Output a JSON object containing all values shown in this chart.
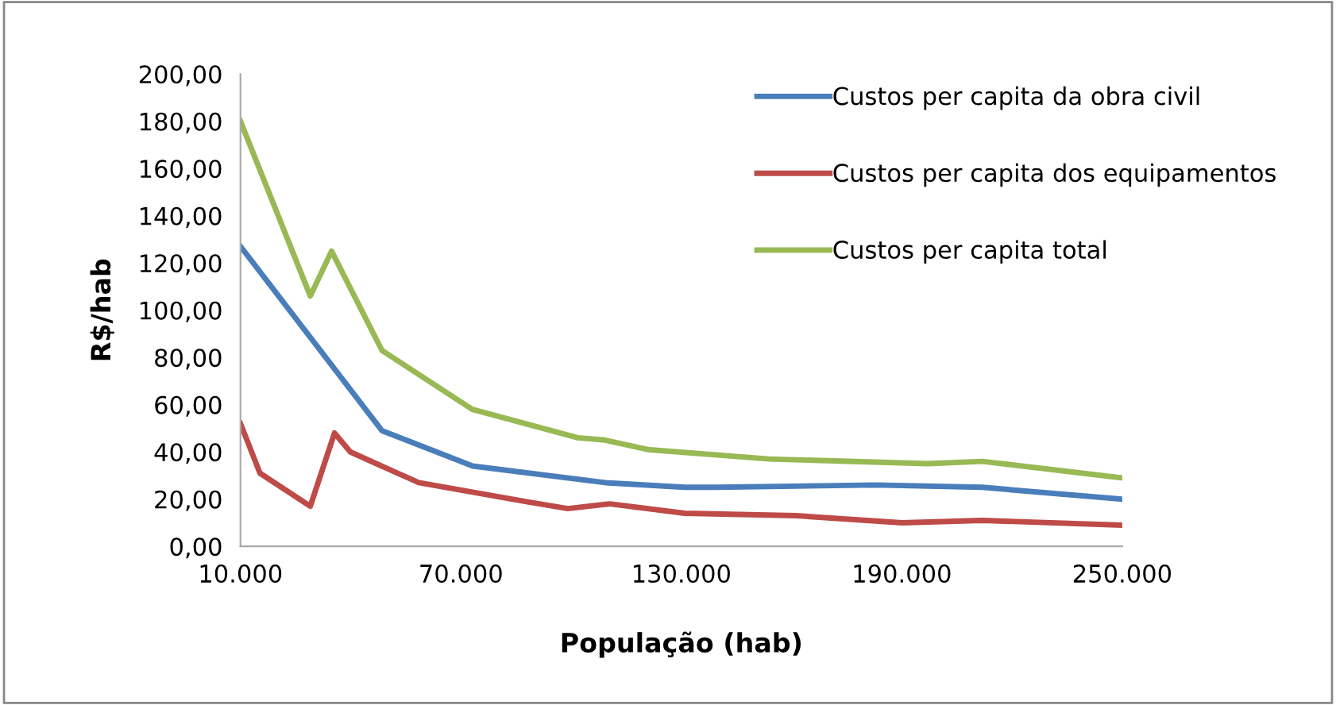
{
  "chart_data": {
    "type": "line",
    "xlabel": "População (hab)",
    "ylabel": "R$/hab",
    "xlim": [
      10000,
      250000
    ],
    "xticks": [
      {
        "value": 10000,
        "label": "10.000"
      },
      {
        "value": 70000,
        "label": "70.000"
      },
      {
        "value": 130000,
        "label": "130.000"
      },
      {
        "value": 190000,
        "label": "190.000"
      },
      {
        "value": 250000,
        "label": "250.000"
      }
    ],
    "ylim": [
      0,
      200
    ],
    "yticks": [
      {
        "value": 0,
        "label": "0,00"
      },
      {
        "value": 20,
        "label": "20,00"
      },
      {
        "value": 40,
        "label": "40,00"
      },
      {
        "value": 60,
        "label": "60,00"
      },
      {
        "value": 80,
        "label": "80,00"
      },
      {
        "value": 100,
        "label": "100,00"
      },
      {
        "value": 120,
        "label": "120,00"
      },
      {
        "value": 140,
        "label": "140,00"
      },
      {
        "value": 160,
        "label": "160,00"
      },
      {
        "value": 180,
        "label": "180,00"
      },
      {
        "value": 200,
        "label": "200,00"
      }
    ],
    "grid": false,
    "legend": "top right",
    "marker": "none",
    "line_style": "solid",
    "series": [
      {
        "name": "Custos per capita da obra civil",
        "color": "#4a7ebb",
        "x": [
          10000,
          48500,
          73200,
          109200,
          130900,
          139500,
          182800,
          211900,
          250000
        ],
        "values": [
          127,
          49,
          34,
          27,
          25,
          25,
          26,
          25,
          20
        ]
      },
      {
        "name": "Custos per capita dos equipamentos",
        "color": "#be4b48",
        "x": [
          10000,
          15300,
          29000,
          35600,
          39900,
          58500,
          87500,
          99100,
          110500,
          130900,
          161200,
          190100,
          211900,
          250000
        ],
        "values": [
          52,
          31,
          17,
          48,
          40,
          27,
          19,
          16,
          18,
          14,
          13,
          10,
          11,
          9
        ]
      },
      {
        "name": "Custos per capita total",
        "color": "#98b954",
        "x": [
          10000,
          29000,
          34800,
          48500,
          73100,
          101800,
          109200,
          120800,
          153800,
          197100,
          211900,
          250000
        ],
        "values": [
          180,
          106,
          125,
          83,
          58,
          46,
          45,
          41,
          37,
          35,
          36,
          29
        ]
      }
    ]
  }
}
